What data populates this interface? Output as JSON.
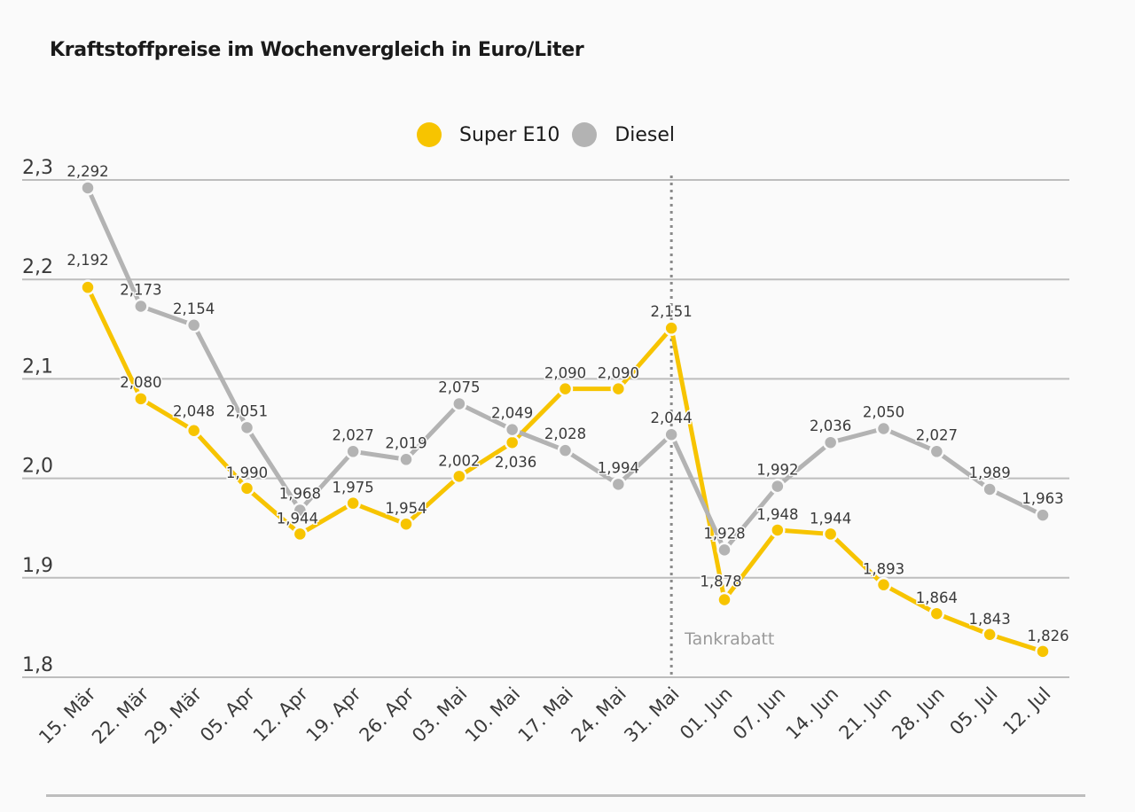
{
  "header": {
    "title": "Kraftstoffpreise im Wochenvergleich in Euro/Liter"
  },
  "legend": {
    "items": [
      {
        "label": "Super E10",
        "color": "#f7c400"
      },
      {
        "label": "Diesel",
        "color": "#b3b3b3"
      }
    ]
  },
  "chart_data": {
    "type": "line",
    "title": "Kraftstoffpreise im Wochenvergleich in Euro/Liter",
    "xlabel": "",
    "ylabel": "",
    "categories": [
      "15. Mär",
      "22. Mär",
      "29. Mär",
      "05. Apr",
      "12. Apr",
      "19. Apr",
      "26. Apr",
      "03. Mai",
      "10. Mai",
      "17. Mai",
      "24. Mai",
      "31. Mai",
      "01. Jun",
      "07. Jun",
      "14. Jun",
      "21. Jun",
      "28. Jun",
      "05. Jul",
      "12. Jul"
    ],
    "series": [
      {
        "name": "Super E10",
        "color": "#f7c400",
        "values": [
          2.192,
          2.08,
          2.048,
          1.99,
          1.944,
          1.975,
          1.954,
          2.002,
          2.036,
          2.09,
          2.09,
          2.151,
          1.878,
          1.948,
          1.944,
          1.893,
          1.864,
          1.843,
          1.826
        ],
        "labels": [
          "2,192",
          "2,080",
          "2,048",
          "1,990",
          "1,944",
          "1,975",
          "1,954",
          "2,002",
          "2,036",
          "2,090",
          "2,090",
          "2,151",
          "1,878",
          "1,948",
          "1,944",
          "1,893",
          "1,864",
          "1,843",
          "1,826"
        ]
      },
      {
        "name": "Diesel",
        "color": "#b3b3b3",
        "values": [
          2.292,
          2.173,
          2.154,
          2.051,
          1.968,
          2.027,
          2.019,
          2.075,
          2.049,
          2.028,
          1.994,
          2.044,
          1.928,
          1.992,
          2.036,
          2.05,
          2.027,
          1.989,
          1.963
        ],
        "labels": [
          "2,292",
          "2,173",
          "2,154",
          "2,051",
          "1,968",
          "2,027",
          "2,019",
          "2,075",
          "2,049",
          "2,028",
          "1,994",
          "2,044",
          "1,928",
          "1,992",
          "2,036",
          "2,050",
          "2,027",
          "1,989",
          "1,963"
        ]
      }
    ],
    "ylim": [
      1.8,
      2.3
    ],
    "yticks": [
      2.3,
      2.2,
      2.1,
      2.0,
      1.9,
      1.8
    ],
    "ytick_labels": [
      "2,3",
      "2,2",
      "2,1",
      "2,0",
      "1,9",
      "1,8"
    ],
    "grid": true,
    "legend_position": "top-center",
    "annotations": [
      {
        "type": "vertical-dotted-line",
        "at_category": "31. Mai",
        "label": "Tankrabatt"
      }
    ]
  }
}
